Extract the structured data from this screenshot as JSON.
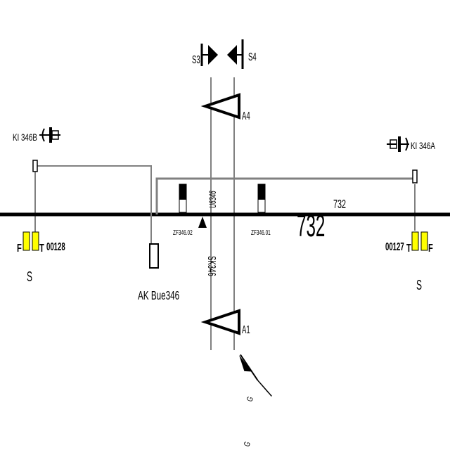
{
  "signals": {
    "s3": "S3",
    "s4": "S4"
  },
  "axle_counters": {
    "a4": "A4",
    "a1": "A1"
  },
  "insulated_joints": {
    "left": "KI 346B",
    "right": "KI 346A"
  },
  "track_section": {
    "main_number": "732",
    "small_number": "732",
    "u_label": "U6346"
  },
  "markers": {
    "zf_left": "ZF346.02",
    "zf_right": "ZF346.01",
    "sk": "SK346",
    "ak": "AK Bue346"
  },
  "left_station": {
    "f": "F",
    "t": "T",
    "code": "00128",
    "s": "S"
  },
  "right_station": {
    "code": "00127",
    "t": "T",
    "f": "F",
    "s": "S"
  },
  "bottom": {
    "g1": "G",
    "g2": "G"
  },
  "colors": {
    "line": "#000000",
    "wire": "#808080",
    "lamp_yellow": "#ffff00"
  }
}
